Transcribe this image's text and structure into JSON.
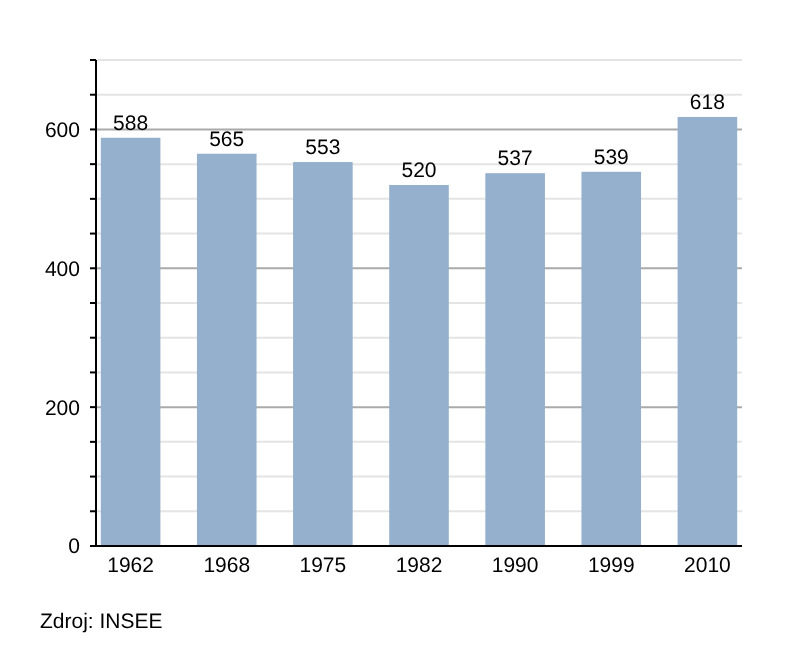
{
  "chart_data": {
    "type": "bar",
    "categories": [
      "1962",
      "1968",
      "1975",
      "1982",
      "1990",
      "1999",
      "2010"
    ],
    "values": [
      588,
      565,
      553,
      520,
      537,
      539,
      618
    ],
    "color": "#95b0cc",
    "ylim": [
      0,
      700
    ],
    "yticks": [
      0,
      {
        "value": 50,
        "label": null
      },
      {
        "value": 100,
        "label": null
      },
      {
        "value": 150,
        "label": null
      },
      200,
      {
        "value": 250,
        "label": null
      },
      {
        "value": 300,
        "label": null
      },
      {
        "value": 350,
        "label": null
      },
      400,
      {
        "value": 450,
        "label": null
      },
      {
        "value": 500,
        "label": null
      },
      {
        "value": 550,
        "label": null
      },
      600,
      {
        "value": 650,
        "label": null
      },
      {
        "value": 700,
        "label": null
      }
    ],
    "grid": "y",
    "data_labels": true,
    "annotations": [
      "Zdroj: INSEE"
    ]
  }
}
